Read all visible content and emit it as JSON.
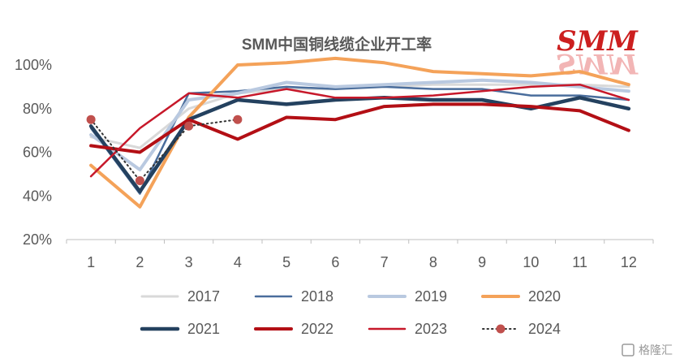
{
  "chart_data": {
    "type": "line",
    "title": "SMM中国铜线缆企业开工率",
    "categories": [
      "1",
      "2",
      "3",
      "4",
      "5",
      "6",
      "7",
      "8",
      "9",
      "10",
      "11",
      "12"
    ],
    "ylim": [
      20,
      100
    ],
    "yticks": [
      20,
      40,
      60,
      80,
      100
    ],
    "ytick_labels": [
      "20%",
      "40%",
      "60%",
      "80%",
      "100%"
    ],
    "grid": false,
    "legend_position": "bottom",
    "series": [
      {
        "name": "2017",
        "color": "#d9d9d9",
        "width": 3,
        "style": "solid",
        "values": [
          67,
          62,
          80,
          87,
          89,
          89,
          90,
          91,
          91,
          91,
          91,
          90
        ]
      },
      {
        "name": "2018",
        "color": "#4a6d9c",
        "width": 2.5,
        "style": "solid",
        "values": [
          71,
          41,
          87,
          88,
          90,
          89,
          90,
          89,
          89,
          86,
          86,
          84
        ]
      },
      {
        "name": "2019",
        "color": "#b9c9e0",
        "width": 4,
        "style": "solid",
        "values": [
          68,
          52,
          84,
          87,
          92,
          90,
          91,
          92,
          93,
          92,
          90,
          88
        ]
      },
      {
        "name": "2020",
        "color": "#f4a259",
        "width": 4,
        "style": "solid",
        "values": [
          54,
          35,
          76,
          100,
          101,
          103,
          101,
          97,
          96,
          95,
          97,
          91
        ]
      },
      {
        "name": "2021",
        "color": "#24415f",
        "width": 4.5,
        "style": "solid",
        "values": [
          72,
          42,
          75,
          84,
          82,
          84,
          85,
          84,
          84,
          80,
          85,
          80
        ]
      },
      {
        "name": "2022",
        "color": "#b30f15",
        "width": 4,
        "style": "solid",
        "values": [
          63,
          60,
          75,
          66,
          76,
          75,
          81,
          82,
          82,
          81,
          79,
          70
        ]
      },
      {
        "name": "2023",
        "color": "#c7182a",
        "width": 2.5,
        "style": "solid",
        "values": [
          49,
          71,
          87,
          85,
          89,
          85,
          85,
          86,
          88,
          90,
          91,
          84
        ]
      },
      {
        "name": "2024",
        "color": "#333333",
        "width": 2,
        "style": "dotted",
        "marker": "circle",
        "marker_color": "#c0504d",
        "values": [
          75,
          47,
          72,
          75,
          null,
          null,
          null,
          null,
          null,
          null,
          null,
          null
        ]
      }
    ]
  },
  "logo": {
    "text": "SMM"
  },
  "watermark": {
    "text": "格隆汇"
  }
}
